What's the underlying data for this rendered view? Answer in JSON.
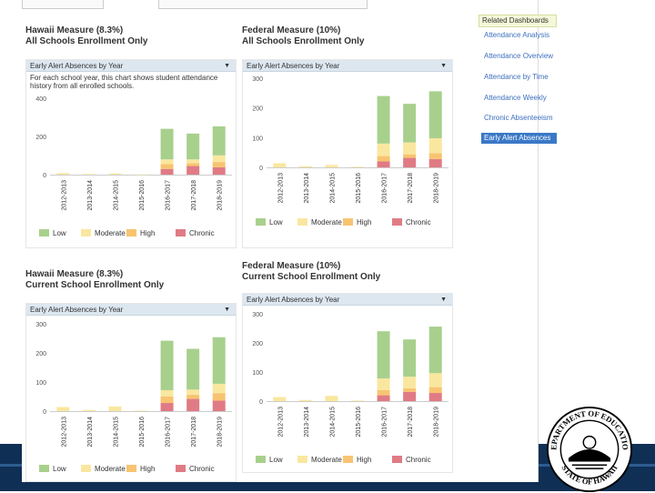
{
  "colors": {
    "low": "#a8d08d",
    "moderate": "#f9e79f",
    "high": "#f8c471",
    "chronic": "#e07b85",
    "accent": "#3a78c6"
  },
  "legend": [
    "Low",
    "Moderate",
    "High",
    "Chronic"
  ],
  "sidebar": {
    "title": "Related Dashboards",
    "items": [
      "Attendance Analysis",
      "Attendance Overview",
      "Attendance by Time",
      "Attendance Weekly",
      "Chronic Absenteeism",
      "Early Alert Absences"
    ]
  },
  "panels": {
    "p1": {
      "measure": "Hawaii Measure (8.3%)",
      "scope": "All Schools Enrollment Only",
      "header": "Early Alert Absences by Year",
      "desc": "For each school year, this chart shows student attendance history from all enrolled schools."
    },
    "p2": {
      "measure": "Federal Measure (10%)",
      "scope": "All Schools Enrollment Only",
      "header": "Early Alert Absences by Year"
    },
    "p3": {
      "measure": "Hawaii Measure (8.3%)",
      "scope": "Current School Enrollment Only",
      "header": "Early Alert Absences by Year"
    },
    "p4": {
      "measure": "Federal Measure (10%)",
      "scope": "Current School Enrollment Only",
      "header": "Early Alert Absences by Year"
    }
  },
  "seal": {
    "top_text": "DEPARTMENT OF EDUCATION",
    "bottom_text": "STATE OF HAWAII"
  },
  "chart_data": [
    {
      "id": "p1",
      "type": "bar",
      "stacked": true,
      "ylim": [
        0,
        400
      ],
      "yticks": [
        0,
        200,
        400
      ],
      "categories": [
        "2012-2013",
        "2013-2014",
        "2014-2015",
        "2015-2016",
        "2016-2017",
        "2017-2018",
        "2018-2019"
      ],
      "series": [
        {
          "name": "Chronic",
          "values": [
            0,
            0,
            0,
            0,
            30,
            45,
            38
          ]
        },
        {
          "name": "High",
          "values": [
            0,
            0,
            0,
            0,
            25,
            15,
            28
          ]
        },
        {
          "name": "Moderate",
          "values": [
            8,
            3,
            6,
            1,
            25,
            20,
            35
          ]
        },
        {
          "name": "Low",
          "values": [
            0,
            0,
            0,
            0,
            160,
            135,
            152
          ]
        }
      ]
    },
    {
      "id": "p2",
      "type": "bar",
      "stacked": true,
      "ylim": [
        0,
        300
      ],
      "yticks": [
        0,
        100,
        200,
        300
      ],
      "categories": [
        "2012-2013",
        "2013-2014",
        "2014-2015",
        "2015-2016",
        "2016-2017",
        "2017-2018",
        "2018-2019"
      ],
      "series": [
        {
          "name": "Chronic",
          "values": [
            0,
            0,
            0,
            0,
            20,
            32,
            28
          ]
        },
        {
          "name": "High",
          "values": [
            0,
            0,
            0,
            0,
            18,
            12,
            20
          ]
        },
        {
          "name": "Moderate",
          "values": [
            14,
            4,
            8,
            2,
            42,
            40,
            50
          ]
        },
        {
          "name": "Low",
          "values": [
            0,
            0,
            0,
            0,
            160,
            130,
            158
          ]
        }
      ]
    },
    {
      "id": "p3",
      "type": "bar",
      "stacked": true,
      "ylim": [
        0,
        300
      ],
      "yticks": [
        0,
        100,
        200,
        300
      ],
      "categories": [
        "2012-2013",
        "2013-2014",
        "2014-2015",
        "2015-2016",
        "2016-2017",
        "2017-2018",
        "2018-2019"
      ],
      "series": [
        {
          "name": "Chronic",
          "values": [
            0,
            0,
            0,
            0,
            28,
            42,
            36
          ]
        },
        {
          "name": "High",
          "values": [
            0,
            0,
            0,
            0,
            22,
            14,
            26
          ]
        },
        {
          "name": "Moderate",
          "values": [
            14,
            4,
            16,
            2,
            22,
            18,
            32
          ]
        },
        {
          "name": "Low",
          "values": [
            0,
            0,
            0,
            0,
            170,
            140,
            160
          ]
        }
      ]
    },
    {
      "id": "p4",
      "type": "bar",
      "stacked": true,
      "ylim": [
        0,
        300
      ],
      "yticks": [
        0,
        100,
        200,
        300
      ],
      "categories": [
        "2012-2013",
        "2013-2014",
        "2014-2015",
        "2015-2016",
        "2016-2017",
        "2017-2018",
        "2018-2019"
      ],
      "series": [
        {
          "name": "Chronic",
          "values": [
            0,
            0,
            0,
            0,
            20,
            32,
            28
          ]
        },
        {
          "name": "High",
          "values": [
            0,
            0,
            0,
            0,
            18,
            12,
            20
          ]
        },
        {
          "name": "Moderate",
          "values": [
            14,
            4,
            18,
            2,
            40,
            40,
            48
          ]
        },
        {
          "name": "Low",
          "values": [
            0,
            0,
            0,
            0,
            162,
            128,
            160
          ]
        }
      ]
    }
  ]
}
